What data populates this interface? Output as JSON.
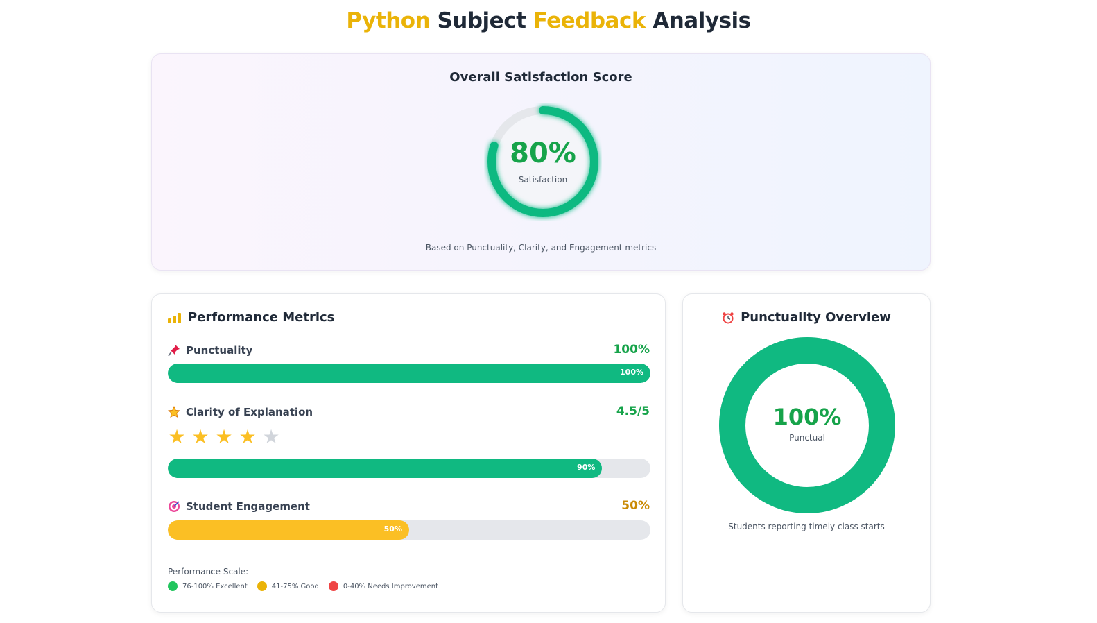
{
  "header": {
    "title_part1": "Python",
    "title_part2": "Subject",
    "title_part3": "Feedback",
    "title_part4": "Analysis"
  },
  "overall": {
    "title": "Overall Satisfaction Score",
    "value_text": "80%",
    "value": 80,
    "label": "Satisfaction",
    "note": "Based on Punctuality, Clarity, and Engagement metrics"
  },
  "metrics": {
    "title": "Performance Metrics",
    "icon": "bar-chart-icon",
    "items": [
      {
        "label": "Punctuality",
        "icon": "pushpin-icon",
        "value_text": "100%",
        "bar_text": "100%",
        "percent": 100,
        "color": "#10b981",
        "value_color": "#16a34a"
      },
      {
        "label": "Clarity of Explanation",
        "icon": "star-icon",
        "value_text": "4.5/5",
        "bar_text": "90%",
        "percent": 90,
        "stars_filled": 4,
        "stars_total": 5,
        "color": "#10b981",
        "value_color": "#16a34a"
      },
      {
        "label": "Student Engagement",
        "icon": "target-icon",
        "value_text": "50%",
        "bar_text": "50%",
        "percent": 50,
        "color": "#fbbf24",
        "value_color": "#ca8a04"
      }
    ],
    "scale": {
      "title": "Performance Scale:",
      "items": [
        {
          "label": "76-100% Excellent",
          "color": "#22c55e"
        },
        {
          "label": "41-75% Good",
          "color": "#eab308"
        },
        {
          "label": "0-40% Needs Improvement",
          "color": "#ef4444"
        }
      ]
    }
  },
  "punctuality": {
    "title": "Punctuality Overview",
    "icon": "alarm-clock-icon",
    "value_text": "100%",
    "value": 100,
    "label": "Punctual",
    "note": "Students reporting timely class starts"
  },
  "colors": {
    "accent": "#eab308",
    "success": "#10b981",
    "success_text": "#16a34a",
    "warning": "#fbbf24",
    "track": "#e5e7eb"
  }
}
